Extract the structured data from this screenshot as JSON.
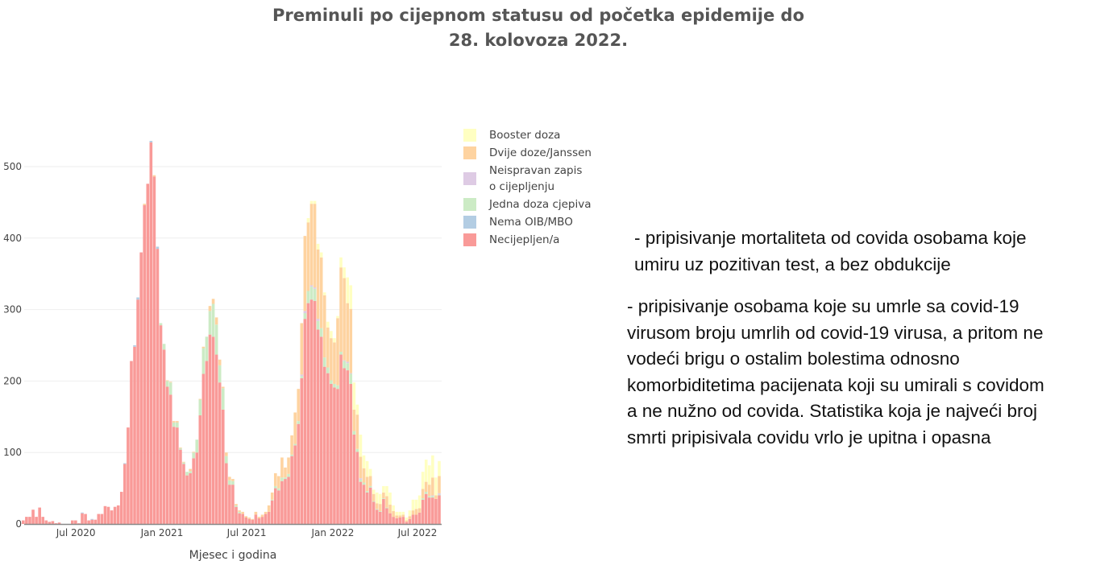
{
  "title": {
    "line1": "Preminuli po cijepnom statusu od početka epidemije do",
    "line2": "28.  kolovoza 2022."
  },
  "notes": {
    "p1": [
      "- pripisivanje mortaliteta od covida osobama koje",
      "umiru uz pozitivan test, a bez obdukcije"
    ],
    "p2": [
      "- pripisivanje osobama koje su umrle sa covid-19",
      "virusom broju umrlih od covid-19 virusa, a pritom ne",
      "vodeći brigu o ostalim bolestima odnosno",
      "komorbiditetima pacijenata koji su umirali s covidom",
      "a ne nužno od covida. Statistika koja je najveći broj",
      "smrti pripisivala covidu vrlo je upitna i opasna"
    ]
  },
  "chart_data": {
    "type": "bar",
    "stacked": true,
    "xlabel": "Mjesec i godina",
    "ylabel": "",
    "ylim": [
      0,
      540
    ],
    "yticks": [
      "0",
      "100",
      "200",
      "300",
      "400",
      "500"
    ],
    "xticks": [
      {
        "date": "2020-07-01",
        "label": "Jul 2020"
      },
      {
        "date": "2021-01-01",
        "label": "Jan 2021"
      },
      {
        "date": "2021-07-01",
        "label": "Jul 2021"
      },
      {
        "date": "2022-01-01",
        "label": "Jan 2022"
      },
      {
        "date": "2022-07-01",
        "label": "Jul 2022"
      }
    ],
    "grid": true,
    "legend_position": "right",
    "legend_order": [
      "Booster doza",
      "Dvije doze/Janssen",
      "Neispravan zapis o cijepljenju",
      "Jedna doza cjepiva",
      "Nema OIB/MBO",
      "Necijepljen/a"
    ],
    "x": [
      "2020-03-16",
      "2020-03-23",
      "2020-03-30",
      "2020-04-06",
      "2020-04-13",
      "2020-04-20",
      "2020-04-27",
      "2020-05-04",
      "2020-05-11",
      "2020-05-18",
      "2020-05-25",
      "2020-06-01",
      "2020-06-08",
      "2020-06-15",
      "2020-06-22",
      "2020-06-29",
      "2020-07-06",
      "2020-07-13",
      "2020-07-20",
      "2020-07-27",
      "2020-08-03",
      "2020-08-10",
      "2020-08-17",
      "2020-08-24",
      "2020-08-31",
      "2020-09-07",
      "2020-09-14",
      "2020-09-21",
      "2020-09-28",
      "2020-10-05",
      "2020-10-12",
      "2020-10-19",
      "2020-10-26",
      "2020-11-02",
      "2020-11-09",
      "2020-11-16",
      "2020-11-23",
      "2020-11-30",
      "2020-12-07",
      "2020-12-14",
      "2020-12-21",
      "2020-12-28",
      "2021-01-04",
      "2021-01-11",
      "2021-01-18",
      "2021-01-25",
      "2021-02-01",
      "2021-02-08",
      "2021-02-15",
      "2021-02-22",
      "2021-03-01",
      "2021-03-08",
      "2021-03-15",
      "2021-03-22",
      "2021-03-29",
      "2021-04-05",
      "2021-04-12",
      "2021-04-19",
      "2021-04-26",
      "2021-05-03",
      "2021-05-10",
      "2021-05-17",
      "2021-05-24",
      "2021-05-31",
      "2021-06-07",
      "2021-06-14",
      "2021-06-21",
      "2021-06-28",
      "2021-07-05",
      "2021-07-12",
      "2021-07-19",
      "2021-07-26",
      "2021-08-02",
      "2021-08-09",
      "2021-08-16",
      "2021-08-23",
      "2021-08-30",
      "2021-09-06",
      "2021-09-13",
      "2021-09-20",
      "2021-09-27",
      "2021-10-04",
      "2021-10-11",
      "2021-10-18",
      "2021-10-25",
      "2021-11-01",
      "2021-11-08",
      "2021-11-15",
      "2021-11-22",
      "2021-11-29",
      "2021-12-06",
      "2021-12-13",
      "2021-12-20",
      "2021-12-27",
      "2022-01-03",
      "2022-01-10",
      "2022-01-17",
      "2022-01-24",
      "2022-01-31",
      "2022-02-07",
      "2022-02-14",
      "2022-02-21",
      "2022-02-28",
      "2022-03-07",
      "2022-03-14",
      "2022-03-21",
      "2022-03-28",
      "2022-04-04",
      "2022-04-11",
      "2022-04-18",
      "2022-04-25",
      "2022-05-02",
      "2022-05-09",
      "2022-05-16",
      "2022-05-23",
      "2022-05-30",
      "2022-06-06",
      "2022-06-13",
      "2022-06-20",
      "2022-06-27",
      "2022-07-04",
      "2022-07-11",
      "2022-07-18",
      "2022-07-25",
      "2022-08-01",
      "2022-08-08",
      "2022-08-15",
      "2022-08-22"
    ],
    "series": [
      {
        "name": "Necijepljen/a",
        "color": "#f99a98",
        "values": [
          5,
          10,
          10,
          20,
          10,
          23,
          10,
          5,
          3,
          4,
          1,
          2,
          0,
          0,
          0,
          5,
          5,
          1,
          15,
          14,
          5,
          6,
          6,
          14,
          14,
          25,
          24,
          19,
          24,
          26,
          45,
          84,
          135,
          228,
          248,
          314,
          380,
          446,
          476,
          534,
          486,
          385,
          278,
          244,
          192,
          181,
          136,
          135,
          104,
          84,
          68,
          71,
          92,
          100,
          152,
          210,
          228,
          265,
          262,
          237,
          198,
          160,
          85,
          55,
          55,
          24,
          15,
          14,
          9,
          7,
          6,
          13,
          8,
          10,
          14,
          17,
          33,
          50,
          47,
          60,
          63,
          66,
          95,
          110,
          140,
          204,
          287,
          309,
          314,
          312,
          272,
          262,
          220,
          211,
          196,
          191,
          189,
          237,
          218,
          215,
          196,
          125,
          101,
          59,
          55,
          44,
          51,
          31,
          20,
          17,
          35,
          22,
          15,
          10,
          8,
          9,
          10,
          3,
          7,
          13,
          13,
          16,
          34,
          42,
          37,
          37,
          35,
          40
        ]
      },
      {
        "name": "Nema OIB/MBO",
        "color": "#b3cde3",
        "values": [
          0,
          0,
          0,
          0,
          0,
          0,
          0,
          0,
          0,
          0,
          0,
          0,
          0,
          0,
          0,
          0,
          0,
          0,
          1,
          0,
          0,
          1,
          0,
          0,
          0,
          0,
          0,
          0,
          0,
          0,
          0,
          1,
          0,
          0,
          2,
          3,
          0,
          0,
          0,
          2,
          0,
          3,
          0,
          0,
          0,
          0,
          0,
          0,
          0,
          0,
          0,
          0,
          0,
          0,
          0,
          0,
          0,
          0,
          0,
          0,
          0,
          0,
          0,
          0,
          0,
          0,
          0,
          0,
          0,
          0,
          0,
          0,
          0,
          0,
          0,
          0,
          0,
          0,
          0,
          0,
          0,
          0,
          0,
          0,
          0,
          0,
          0,
          0,
          0,
          0,
          0,
          0,
          0,
          0,
          0,
          0,
          0,
          0,
          0,
          0,
          0,
          0,
          0,
          0,
          0,
          0,
          0,
          0,
          0,
          0,
          0,
          0,
          0,
          0,
          0,
          0,
          0,
          0,
          0,
          0,
          0,
          0,
          0,
          0,
          0,
          0,
          0,
          0
        ]
      },
      {
        "name": "Jedna doza cjepiva",
        "color": "#ccebc5",
        "values": [
          0,
          0,
          0,
          0,
          0,
          0,
          0,
          0,
          0,
          0,
          0,
          0,
          0,
          0,
          0,
          0,
          0,
          0,
          0,
          0,
          0,
          0,
          0,
          0,
          0,
          0,
          0,
          0,
          0,
          0,
          0,
          0,
          0,
          0,
          0,
          0,
          0,
          0,
          0,
          0,
          0,
          0,
          3,
          8,
          8,
          17,
          6,
          7,
          2,
          2,
          5,
          3,
          8,
          18,
          22,
          36,
          34,
          33,
          46,
          42,
          24,
          30,
          10,
          6,
          5,
          2,
          2,
          0,
          0,
          0,
          0,
          0,
          0,
          0,
          0,
          0,
          1,
          3,
          3,
          5,
          2,
          4,
          2,
          2,
          4,
          3,
          8,
          17,
          18,
          17,
          12,
          12,
          13,
          8,
          5,
          5,
          5,
          4,
          10,
          10,
          14,
          5,
          4,
          3,
          3,
          2,
          2,
          1,
          1,
          1,
          1,
          1,
          0,
          0,
          0,
          0,
          0,
          0,
          0,
          0,
          0,
          0,
          2,
          3,
          2,
          2,
          0,
          1
        ]
      },
      {
        "name": "Neispravan zapis o cijepljenju",
        "color": "#decbe4",
        "values": [
          0,
          0,
          0,
          0,
          0,
          0,
          0,
          0,
          0,
          0,
          0,
          0,
          0,
          0,
          0,
          0,
          0,
          0,
          0,
          0,
          0,
          0,
          0,
          0,
          0,
          0,
          0,
          0,
          0,
          0,
          0,
          0,
          0,
          0,
          0,
          0,
          0,
          0,
          0,
          0,
          0,
          0,
          0,
          0,
          0,
          0,
          0,
          0,
          0,
          0,
          0,
          0,
          0,
          0,
          0,
          0,
          0,
          0,
          0,
          0,
          0,
          0,
          0,
          0,
          0,
          0,
          0,
          0,
          0,
          0,
          0,
          0,
          0,
          0,
          0,
          0,
          0,
          0,
          0,
          0,
          0,
          0,
          0,
          0,
          0,
          2,
          3,
          0,
          2,
          2,
          3,
          0,
          0,
          0,
          0,
          0,
          0,
          0,
          1,
          2,
          1,
          0,
          0,
          2,
          0,
          0,
          0,
          0,
          0,
          0,
          0,
          0,
          0,
          0,
          0,
          0,
          0,
          0,
          0,
          0,
          0,
          0,
          0,
          0,
          0,
          1,
          0,
          2
        ]
      },
      {
        "name": "Dvije doze/Janssen",
        "color": "#fed3a0",
        "values": [
          0,
          0,
          0,
          0,
          0,
          0,
          0,
          0,
          0,
          0,
          0,
          0,
          0,
          0,
          0,
          0,
          0,
          0,
          0,
          0,
          0,
          0,
          0,
          0,
          0,
          0,
          0,
          0,
          0,
          0,
          0,
          0,
          0,
          0,
          0,
          0,
          0,
          2,
          0,
          0,
          2,
          0,
          0,
          0,
          1,
          1,
          2,
          2,
          1,
          1,
          0,
          3,
          1,
          0,
          1,
          2,
          0,
          7,
          7,
          10,
          8,
          2,
          5,
          5,
          3,
          2,
          2,
          3,
          2,
          2,
          1,
          4,
          2,
          3,
          3,
          9,
          10,
          18,
          17,
          28,
          14,
          23,
          27,
          44,
          45,
          72,
          105,
          96,
          114,
          117,
          97,
          99,
          87,
          56,
          59,
          58,
          94,
          118,
          115,
          82,
          90,
          30,
          48,
          30,
          20,
          20,
          14,
          10,
          8,
          10,
          8,
          16,
          12,
          8,
          4,
          3,
          3,
          2,
          4,
          6,
          8,
          6,
          13,
          14,
          16,
          25,
          5,
          24
        ]
      },
      {
        "name": "Booster doza",
        "color": "#ffffc2",
        "values": [
          0,
          0,
          0,
          0,
          0,
          0,
          0,
          0,
          0,
          0,
          0,
          0,
          0,
          0,
          0,
          0,
          0,
          0,
          0,
          0,
          0,
          0,
          0,
          0,
          0,
          0,
          0,
          0,
          0,
          0,
          0,
          0,
          0,
          0,
          0,
          0,
          0,
          0,
          0,
          0,
          0,
          0,
          0,
          0,
          0,
          0,
          0,
          0,
          0,
          0,
          0,
          0,
          0,
          0,
          0,
          0,
          0,
          0,
          0,
          0,
          0,
          0,
          0,
          0,
          0,
          0,
          0,
          0,
          0,
          0,
          0,
          0,
          0,
          0,
          0,
          0,
          0,
          0,
          0,
          0,
          0,
          0,
          0,
          0,
          0,
          0,
          0,
          6,
          4,
          4,
          8,
          7,
          4,
          8,
          10,
          6,
          3,
          14,
          15,
          36,
          33,
          38,
          14,
          31,
          18,
          22,
          10,
          6,
          15,
          14,
          9,
          14,
          17,
          8,
          5,
          5,
          4,
          4,
          8,
          15,
          13,
          18,
          24,
          31,
          27,
          31,
          25,
          21
        ]
      }
    ]
  }
}
